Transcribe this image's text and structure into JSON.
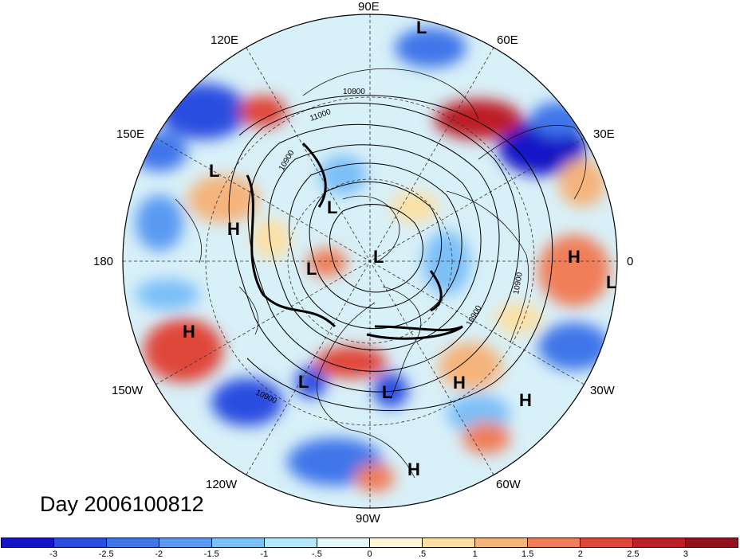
{
  "title": "Day 2006100812",
  "longitude_labels": {
    "n": "90E",
    "ne1": "60E",
    "ne2": "30E",
    "e": "0",
    "se1": "30W",
    "se2": "60W",
    "s": "90W",
    "sw1": "120W",
    "sw2": "150W",
    "w": "180",
    "nw1": "150E",
    "nw2": "120E"
  },
  "contour_labels": [
    "11000",
    "10900",
    "10900",
    "10900",
    "10900",
    "10800"
  ],
  "pressure_systems": [
    {
      "label": "L",
      "type": "low"
    },
    {
      "label": "L",
      "type": "low"
    },
    {
      "label": "L",
      "type": "low"
    },
    {
      "label": "L",
      "type": "low"
    },
    {
      "label": "L",
      "type": "low"
    },
    {
      "label": "L",
      "type": "low"
    },
    {
      "label": "L",
      "type": "low"
    },
    {
      "label": "L",
      "type": "low"
    },
    {
      "label": "H",
      "type": "high"
    },
    {
      "label": "H",
      "type": "high"
    },
    {
      "label": "H",
      "type": "high"
    },
    {
      "label": "H",
      "type": "high"
    },
    {
      "label": "H",
      "type": "high"
    },
    {
      "label": "H",
      "type": "high"
    }
  ],
  "colorbar": {
    "ticks": [
      "-3",
      "-2.5",
      "-2",
      "-1.5",
      "-1",
      "-.5",
      "0",
      ".5",
      "1",
      "1.5",
      "2",
      "2.5",
      "3"
    ],
    "colors": [
      "#1414c8",
      "#2a4ee0",
      "#3f76ea",
      "#5a9af2",
      "#7cc0f8",
      "#b4e8fb",
      "#e4f8fc",
      "#fdf7d8",
      "#fbe0a6",
      "#f5b47c",
      "#f07e58",
      "#e0463a",
      "#be1e26",
      "#96101e"
    ]
  }
}
